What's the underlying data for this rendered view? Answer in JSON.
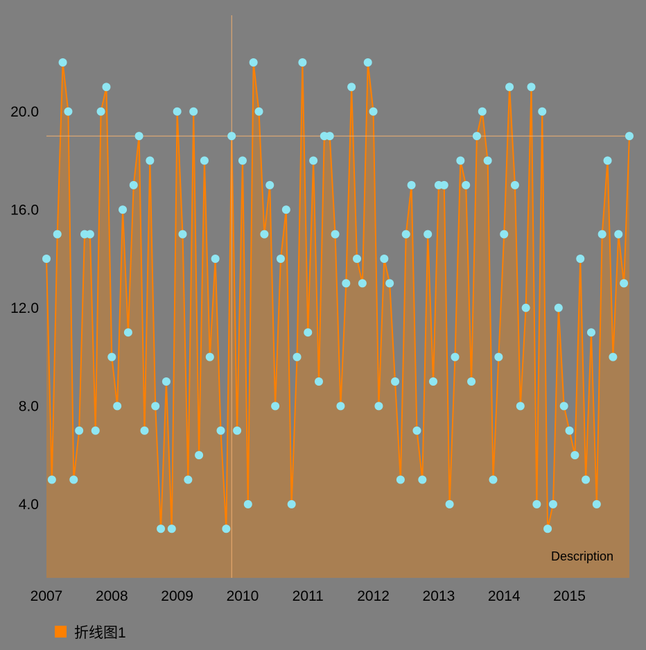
{
  "colors": {
    "background": "#7f7f7f",
    "line": "#ff8000",
    "fill": "#a97f52",
    "point": "#8fe6f2",
    "crosshair": "#f0b070",
    "text": "#000000"
  },
  "chart_data": {
    "type": "line",
    "title": "",
    "description": "Description",
    "legend": {
      "position": "bottom-left",
      "label": "折线图1"
    },
    "grid": false,
    "ylim": [
      1,
      22
    ],
    "yticks": [
      "4.0",
      "8.0",
      "12.0",
      "16.0",
      "20.0"
    ],
    "ytick_values": [
      4,
      8,
      12,
      16,
      20
    ],
    "xticks": [
      "2007",
      "2008",
      "2009",
      "2010",
      "2011",
      "2012",
      "2013",
      "2014",
      "2015"
    ],
    "xtick_positions": [
      0,
      12,
      24,
      36,
      48,
      60,
      72,
      84,
      96
    ],
    "x_start": "2007-01",
    "x_end": "2015-12",
    "series": [
      {
        "name": "折线图1",
        "values": [
          14,
          5,
          15,
          22,
          20,
          5,
          7,
          15,
          15,
          7,
          20,
          21,
          10,
          8,
          16,
          11,
          17,
          19,
          7,
          18,
          8,
          3,
          9,
          3,
          20,
          15,
          5,
          20,
          6,
          18,
          10,
          14,
          7,
          3,
          19,
          7,
          18,
          4,
          22,
          20,
          15,
          17,
          8,
          14,
          16,
          4,
          10,
          22,
          11,
          18,
          9,
          19,
          19,
          15,
          8,
          13,
          21,
          14,
          13,
          22,
          20,
          8,
          14,
          13,
          9,
          5,
          15,
          17,
          7,
          5,
          15,
          9,
          17,
          17,
          4,
          10,
          18,
          17,
          9,
          19,
          20,
          18,
          5,
          10,
          15,
          21,
          17,
          8,
          12,
          21,
          4,
          20,
          3,
          4,
          12,
          8,
          7,
          6,
          14,
          5,
          11,
          4,
          15,
          18,
          10,
          15,
          13,
          19
        ]
      }
    ],
    "highlight": {
      "index": 34,
      "value": 19
    }
  }
}
